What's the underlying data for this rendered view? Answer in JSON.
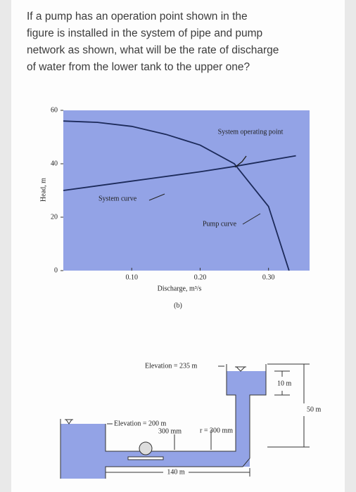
{
  "question": {
    "lines": [
      "If a pump has an operation point shown in the",
      "figure is installed in the system of pipe and pump",
      "network as shown, what will be the rate of discharge",
      "of water from the lower tank to the upper one?"
    ]
  },
  "chart_data": {
    "type": "line",
    "x_label": "Discharge, m³/s",
    "y_label": "Head, m",
    "caption": "(b)",
    "annotation": "System operating point",
    "xlim": [
      0,
      0.36
    ],
    "ylim": [
      0,
      60
    ],
    "xticks": [
      {
        "value": 0.1,
        "label": "0.10"
      },
      {
        "value": 0.2,
        "label": "0.20"
      },
      {
        "value": 0.3,
        "label": "0.30"
      }
    ],
    "yticks": [
      0,
      20,
      40,
      60
    ],
    "background": "#93a3e6",
    "series": [
      {
        "name": "Pump curve",
        "color": "#1c2a5a",
        "x": [
          0,
          0.05,
          0.1,
          0.15,
          0.2,
          0.25,
          0.3,
          0.33
        ],
        "values": [
          56,
          55.5,
          54,
          51,
          47,
          40,
          24,
          0
        ]
      },
      {
        "name": "System curve",
        "color": "#1c2a5a",
        "x": [
          0,
          0.1,
          0.2,
          0.25,
          0.34
        ],
        "values": [
          30,
          33.5,
          37,
          39,
          43
        ]
      }
    ]
  },
  "diagram": {
    "upper_elevation": "Elevation = 235 m",
    "depth": "10 m",
    "height": "50 m",
    "lower_elevation": "Elevation = 200 m",
    "diameter": "300 mm",
    "bend_radius": "r = 300 mm",
    "length": "140 m"
  }
}
